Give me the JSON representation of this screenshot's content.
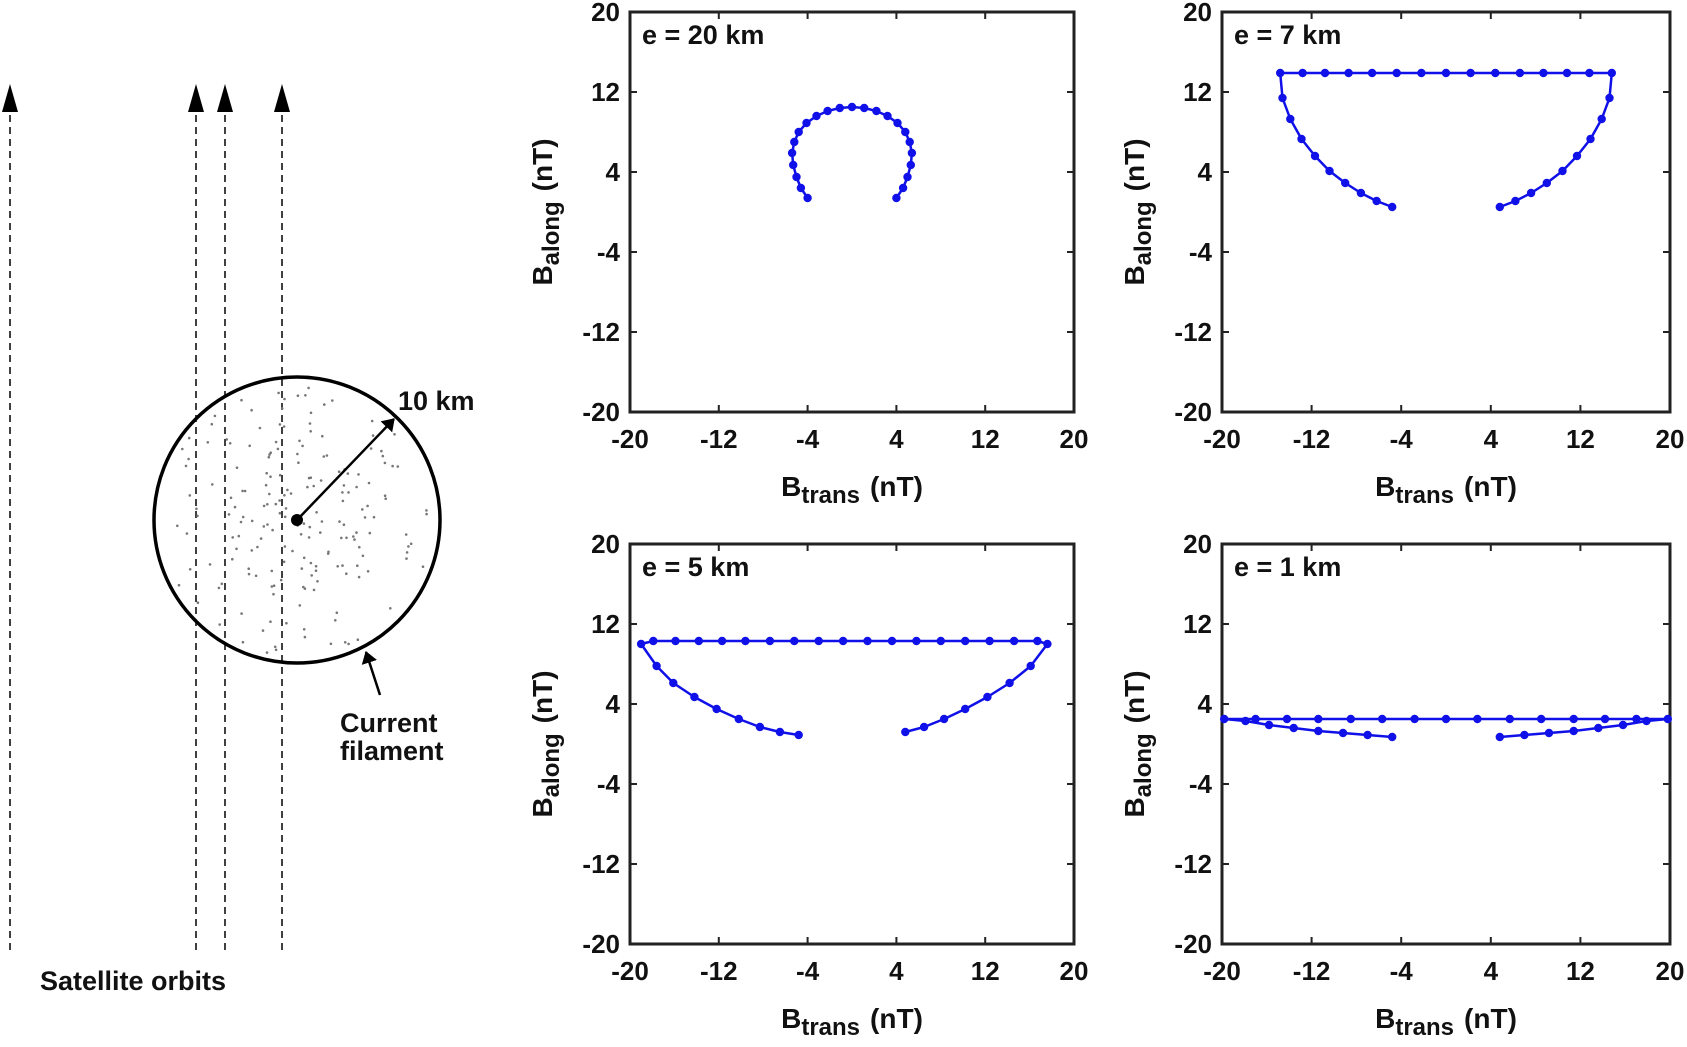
{
  "diagram": {
    "radius_label": "10 km",
    "filament_label_line1": "Current",
    "filament_label_line2": "filament",
    "orbits_label": "Satellite orbits"
  },
  "style": {
    "series_color": "#1010e8",
    "axis_color": "#222222",
    "dot_color": "#777777"
  },
  "chart_data": [
    {
      "type": "scatter",
      "title": "e = 20 km",
      "xlabel_main": "B",
      "xlabel_sub": "trans",
      "xlabel_unit": "(nT)",
      "ylabel_main": "B",
      "ylabel_sub": "along",
      "ylabel_unit": "(nT)",
      "xlim": [
        -20,
        20
      ],
      "ylim": [
        -20,
        20
      ],
      "xticks": [
        -20,
        -12,
        -4,
        4,
        12,
        20
      ],
      "yticks": [
        -20,
        -12,
        -4,
        4,
        12,
        20
      ],
      "grid": false,
      "series": [
        {
          "x": [
            -4,
            -4.6,
            -5.0,
            -5.3,
            -5.4,
            -5.2,
            -4.8,
            -4.1,
            -3.2,
            -2.2,
            -1.1,
            0,
            1.1,
            2.2,
            3.2,
            4.1,
            4.8,
            5.2,
            5.4,
            5.3,
            5.0,
            4.6,
            4
          ],
          "y": [
            1.4,
            2.4,
            3.5,
            4.7,
            5.9,
            7.0,
            8.0,
            8.9,
            9.6,
            10.1,
            10.4,
            10.5,
            10.4,
            10.1,
            9.6,
            8.9,
            8.0,
            7.0,
            5.9,
            4.7,
            3.5,
            2.4,
            1.4
          ]
        }
      ]
    },
    {
      "type": "scatter",
      "title": "e = 7 km",
      "xlabel_main": "B",
      "xlabel_sub": "trans",
      "xlabel_unit": "(nT)",
      "ylabel_main": "B",
      "ylabel_sub": "along",
      "ylabel_unit": "(nT)",
      "xlim": [
        -20,
        20
      ],
      "ylim": [
        -20,
        20
      ],
      "xticks": [
        -20,
        -12,
        -4,
        4,
        12,
        20
      ],
      "yticks": [
        -20,
        -12,
        -4,
        4,
        12,
        20
      ],
      "grid": false,
      "series": [
        {
          "x": [
            -4.8,
            -6.2,
            -7.6,
            -9.0,
            -10.4,
            -11.7,
            -12.9,
            -13.9,
            -14.6,
            -14.8,
            -12.8,
            -10.8,
            -8.7,
            -6.6,
            -4.4,
            -2.2,
            0,
            2.2,
            4.4,
            6.6,
            8.7,
            10.8,
            12.8,
            14.8,
            14.6,
            13.9,
            12.9,
            11.7,
            10.4,
            9.0,
            7.6,
            6.2,
            4.8
          ],
          "y": [
            0.5,
            1.1,
            1.9,
            2.9,
            4.1,
            5.6,
            7.3,
            9.3,
            11.4,
            13.9,
            13.9,
            13.9,
            13.9,
            13.9,
            13.9,
            13.9,
            13.9,
            13.9,
            13.9,
            13.9,
            13.9,
            13.9,
            13.9,
            13.9,
            11.4,
            9.3,
            7.3,
            5.6,
            4.1,
            2.9,
            1.9,
            1.1,
            0.5
          ]
        }
      ]
    },
    {
      "type": "scatter",
      "title": "e = 5 km",
      "xlabel_main": "B",
      "xlabel_sub": "trans",
      "xlabel_unit": "(nT)",
      "ylabel_main": "B",
      "ylabel_sub": "along",
      "ylabel_unit": "(nT)",
      "xlim": [
        -20,
        20
      ],
      "ylim": [
        -20,
        20
      ],
      "xticks": [
        -20,
        -12,
        -4,
        4,
        12,
        20
      ],
      "yticks": [
        -20,
        -12,
        -4,
        4,
        12,
        20
      ],
      "grid": false,
      "series": [
        {
          "x": [
            -4.8,
            -6.5,
            -8.3,
            -10.2,
            -12.2,
            -14.2,
            -16.1,
            -17.6,
            -19.0,
            -17.9,
            -15.9,
            -13.8,
            -11.7,
            -9.6,
            -7.4,
            -5.2,
            -3.0,
            -0.8,
            1.4,
            3.6,
            5.8,
            8.0,
            10.2,
            12.4,
            14.6,
            16.7,
            17.6,
            16.1,
            14.2,
            12.2,
            10.2,
            8.3,
            6.5,
            4.8
          ],
          "y": [
            0.9,
            1.2,
            1.7,
            2.5,
            3.5,
            4.7,
            6.1,
            7.8,
            10.0,
            10.3,
            10.3,
            10.3,
            10.3,
            10.3,
            10.3,
            10.3,
            10.3,
            10.3,
            10.3,
            10.3,
            10.3,
            10.3,
            10.3,
            10.3,
            10.3,
            10.3,
            10.0,
            7.8,
            6.1,
            4.7,
            3.5,
            2.5,
            1.7,
            1.2
          ]
        }
      ]
    },
    {
      "type": "scatter",
      "title": "e = 1 km",
      "xlabel_main": "B",
      "xlabel_sub": "trans",
      "xlabel_unit": "(nT)",
      "ylabel_main": "B",
      "ylabel_sub": "along",
      "ylabel_unit": "(nT)",
      "xlim": [
        -20,
        20
      ],
      "ylim": [
        -20,
        20
      ],
      "xticks": [
        -20,
        -12,
        -4,
        4,
        12,
        20
      ],
      "yticks": [
        -20,
        -12,
        -4,
        4,
        12,
        20
      ],
      "grid": false,
      "series": [
        {
          "x": [
            -4.8,
            -7.0,
            -9.2,
            -11.4,
            -13.6,
            -15.8,
            -17.9,
            -19.8,
            -17.0,
            -14.2,
            -11.4,
            -8.5,
            -5.7,
            -2.8,
            0,
            2.8,
            5.7,
            8.5,
            11.4,
            14.2,
            17.0,
            19.8,
            17.9,
            15.8,
            13.6,
            11.4,
            9.2,
            7.0,
            4.8
          ],
          "y": [
            0.7,
            0.9,
            1.1,
            1.3,
            1.6,
            1.9,
            2.3,
            2.5,
            2.5,
            2.5,
            2.5,
            2.5,
            2.5,
            2.5,
            2.5,
            2.5,
            2.5,
            2.5,
            2.5,
            2.5,
            2.5,
            2.5,
            2.3,
            1.9,
            1.6,
            1.3,
            1.1,
            0.9,
            0.7
          ]
        }
      ]
    }
  ]
}
